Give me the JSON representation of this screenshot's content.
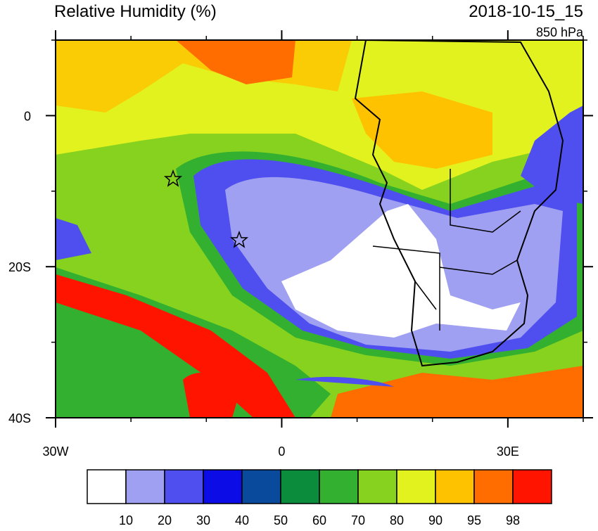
{
  "map": {
    "title": "Relative Humidity (%)",
    "valid_time": "2018-10-15_15",
    "level": "850 hPa",
    "lon_range": [
      -30,
      40
    ],
    "lat_range": [
      10,
      -40
    ],
    "lon_ticks": [
      {
        "value": -30,
        "label": "30W"
      },
      0,
      {
        "value": 30,
        "label": "30E"
      }
    ],
    "lat_ticks": [
      0,
      {
        "value": -20,
        "label": "20S"
      },
      {
        "value": -40,
        "label": "40S"
      }
    ],
    "colorbar": {
      "colors": [
        "#ffffff",
        "#a0a0f2",
        "#4f4ff0",
        "#0c0ce6",
        "#0a4a9c",
        "#0b8c3c",
        "#33b030",
        "#86d21e",
        "#e2f21e",
        "#ffc200",
        "#ff6c00",
        "#ff1400"
      ],
      "labels": [
        10,
        20,
        30,
        40,
        50,
        60,
        70,
        80,
        90,
        95,
        98
      ]
    }
  }
}
